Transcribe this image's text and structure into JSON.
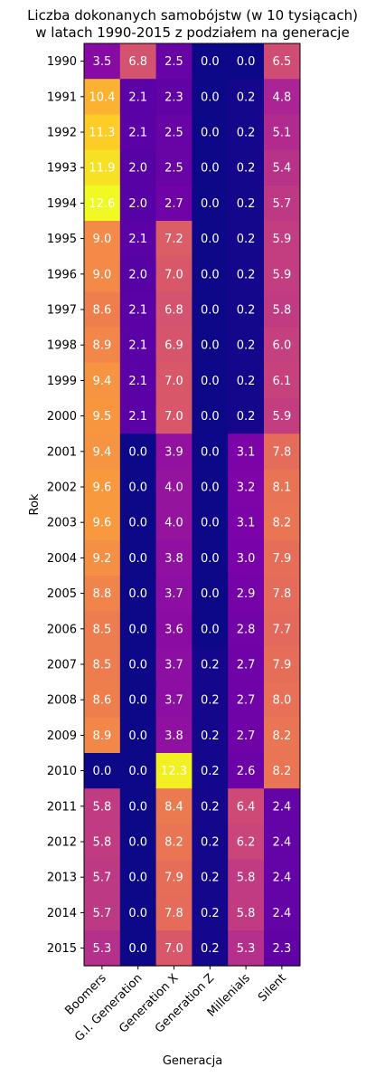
{
  "chart_data": {
    "type": "heatmap",
    "title": "Liczba dokonanych samobójstw (w 10 tysiącach)\nw latach 1990-2015 z podziałem na generacje",
    "xlabel": "Generacja",
    "ylabel": "Rok",
    "x_categories": [
      "Boomers",
      "G.I. Generation",
      "Generation X",
      "Generation Z",
      "Millenials",
      "Silent"
    ],
    "y_categories": [
      "1990",
      "1991",
      "1992",
      "1993",
      "1994",
      "1995",
      "1996",
      "1997",
      "1998",
      "1999",
      "2000",
      "2001",
      "2002",
      "2003",
      "2004",
      "2005",
      "2006",
      "2007",
      "2008",
      "2009",
      "2010",
      "2011",
      "2012",
      "2013",
      "2014",
      "2015"
    ],
    "values": [
      [
        3.5,
        6.8,
        2.5,
        0.0,
        0.0,
        6.5
      ],
      [
        10.4,
        2.1,
        2.3,
        0.0,
        0.2,
        4.8
      ],
      [
        11.3,
        2.1,
        2.5,
        0.0,
        0.2,
        5.1
      ],
      [
        11.9,
        2.0,
        2.5,
        0.0,
        0.2,
        5.4
      ],
      [
        12.6,
        2.0,
        2.7,
        0.0,
        0.2,
        5.7
      ],
      [
        9.0,
        2.1,
        7.2,
        0.0,
        0.2,
        5.9
      ],
      [
        9.0,
        2.0,
        7.0,
        0.0,
        0.2,
        5.9
      ],
      [
        8.6,
        2.1,
        6.8,
        0.0,
        0.2,
        5.8
      ],
      [
        8.9,
        2.1,
        6.9,
        0.0,
        0.2,
        6.0
      ],
      [
        9.4,
        2.1,
        7.0,
        0.0,
        0.2,
        6.1
      ],
      [
        9.5,
        2.1,
        7.0,
        0.0,
        0.2,
        5.9
      ],
      [
        9.4,
        0.0,
        3.9,
        0.0,
        3.1,
        7.8
      ],
      [
        9.6,
        0.0,
        4.0,
        0.0,
        3.2,
        8.1
      ],
      [
        9.6,
        0.0,
        4.0,
        0.0,
        3.1,
        8.2
      ],
      [
        9.2,
        0.0,
        3.8,
        0.0,
        3.0,
        7.9
      ],
      [
        8.8,
        0.0,
        3.7,
        0.0,
        2.9,
        7.8
      ],
      [
        8.5,
        0.0,
        3.6,
        0.0,
        2.8,
        7.7
      ],
      [
        8.5,
        0.0,
        3.7,
        0.2,
        2.7,
        7.9
      ],
      [
        8.6,
        0.0,
        3.7,
        0.2,
        2.7,
        8.0
      ],
      [
        8.9,
        0.0,
        3.8,
        0.2,
        2.7,
        8.2
      ],
      [
        0.0,
        0.0,
        12.3,
        0.2,
        2.6,
        8.2
      ],
      [
        5.8,
        0.0,
        8.4,
        0.2,
        6.4,
        2.4
      ],
      [
        5.8,
        0.0,
        8.2,
        0.2,
        6.2,
        2.4
      ],
      [
        5.7,
        0.0,
        7.9,
        0.2,
        5.8,
        2.4
      ],
      [
        5.7,
        0.0,
        7.8,
        0.2,
        5.8,
        2.4
      ],
      [
        5.3,
        0.0,
        7.0,
        0.2,
        5.3,
        2.3
      ]
    ],
    "colormap": "plasma",
    "value_range": [
      0.0,
      12.6
    ],
    "cell_text_color": "#ffffff",
    "grid": false
  }
}
